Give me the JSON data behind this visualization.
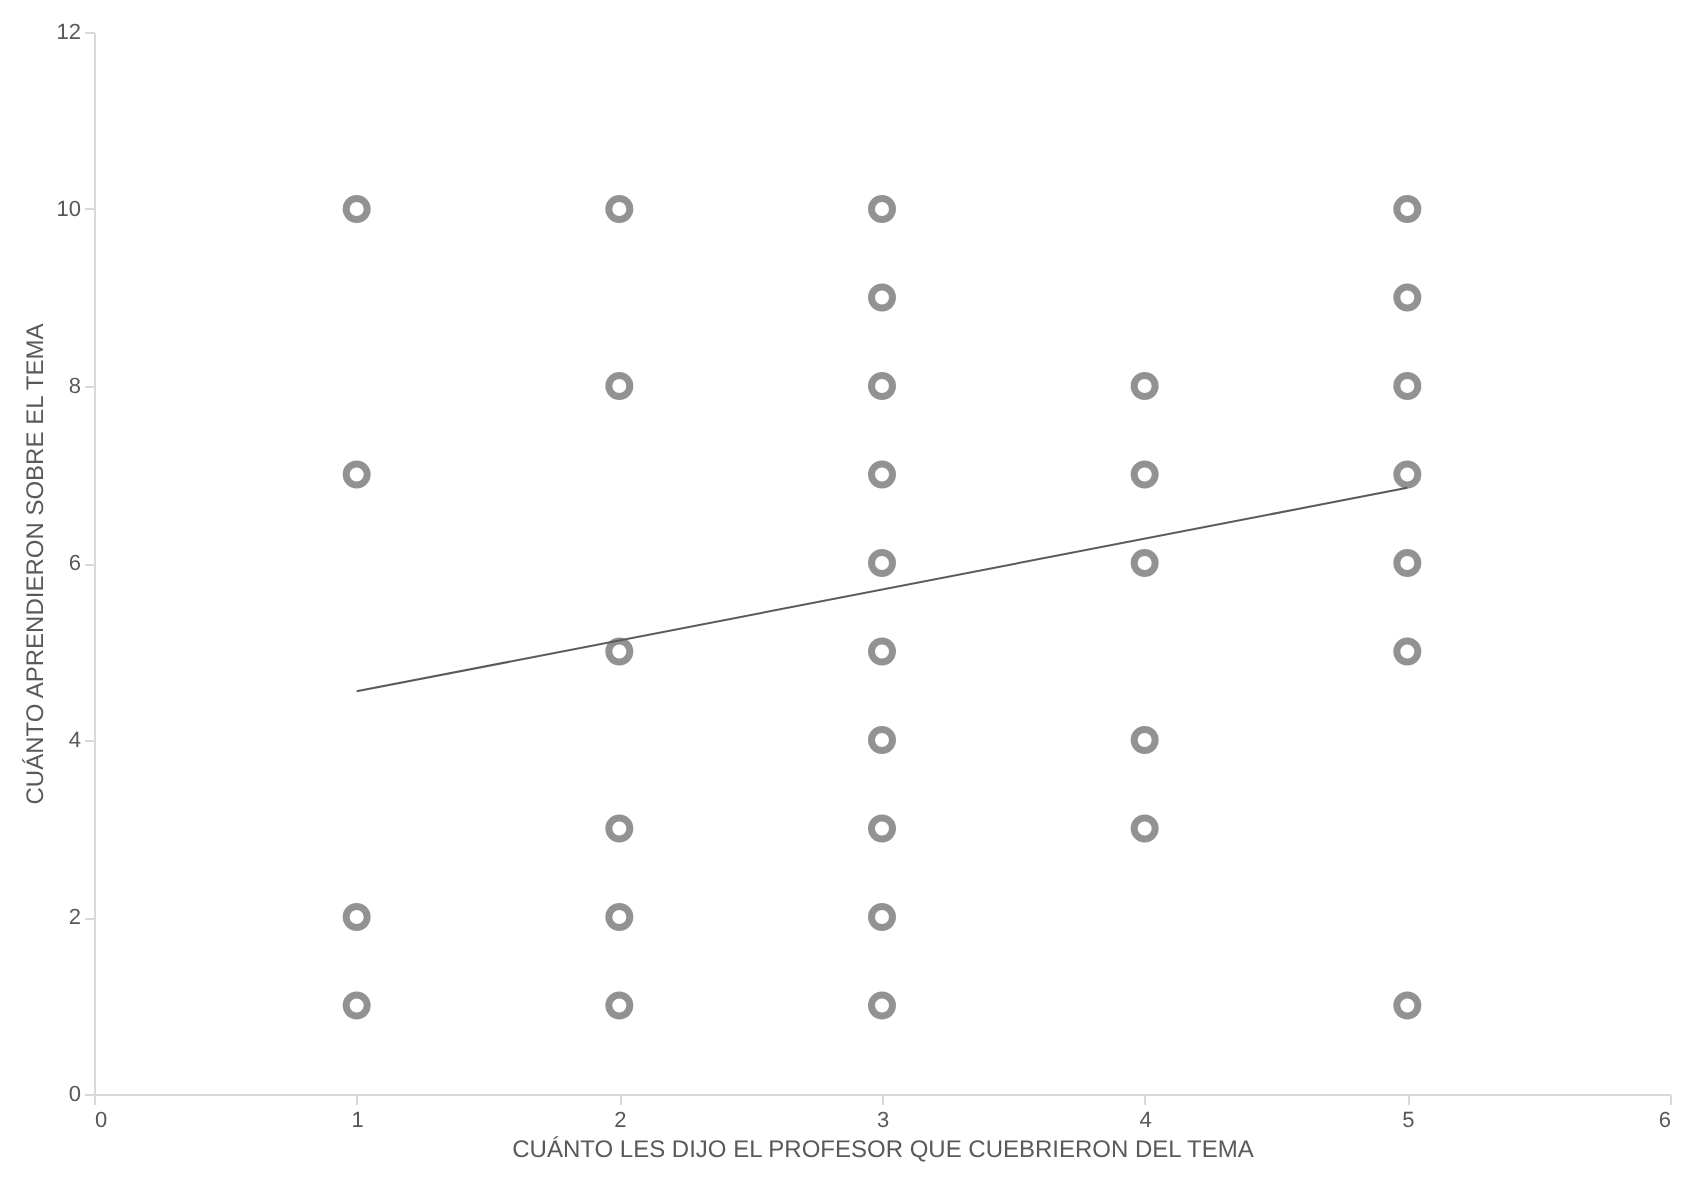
{
  "chart_data": {
    "type": "scatter",
    "xlabel": "CUÁNTO LES DIJO EL PROFESOR QUE CUEBRIERON DEL TEMA",
    "ylabel": "CUÁNTO APRENDIERON SOBRE EL TEMA",
    "xlim": [
      0,
      6
    ],
    "xticks": [
      0,
      1,
      2,
      3,
      4,
      5,
      6
    ],
    "ylim": [
      0,
      12
    ],
    "yticks": [
      0,
      2,
      4,
      6,
      8,
      10,
      12
    ],
    "grid": false,
    "series": [
      {
        "type": "scatter",
        "marker": "circle",
        "color": "#808080",
        "x": [
          1,
          1,
          1,
          1,
          2,
          2,
          2,
          2,
          2,
          2,
          3,
          3,
          3,
          3,
          3,
          3,
          3,
          3,
          3,
          3,
          4,
          4,
          4,
          4,
          4,
          5,
          5,
          5,
          5,
          5,
          5,
          5
        ],
        "values": [
          10,
          7,
          2,
          1,
          10,
          8,
          5,
          3,
          2,
          1,
          10,
          9,
          8,
          7,
          6,
          5,
          4,
          3,
          2,
          1,
          8,
          7,
          6,
          4,
          3,
          10,
          9,
          8,
          7,
          6,
          5,
          1
        ]
      },
      {
        "type": "line",
        "marker": "none",
        "color": "#595959",
        "x": [
          1,
          5
        ],
        "values": [
          4.55,
          6.85
        ]
      }
    ]
  }
}
